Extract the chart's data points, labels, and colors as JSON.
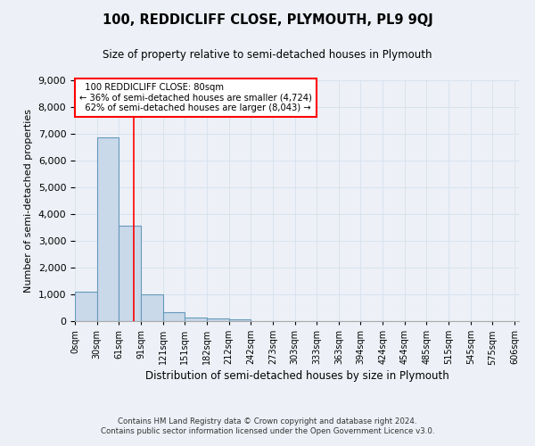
{
  "title": "100, REDDICLIFF CLOSE, PLYMOUTH, PL9 9QJ",
  "subtitle": "Size of property relative to semi-detached houses in Plymouth",
  "xlabel": "Distribution of semi-detached houses by size in Plymouth",
  "ylabel": "Number of semi-detached properties",
  "bar_values": [
    1100,
    6850,
    3560,
    1000,
    320,
    140,
    100,
    70,
    0,
    0,
    0,
    0,
    0,
    0,
    0,
    0,
    0,
    0,
    0,
    0
  ],
  "bin_labels": [
    "0sqm",
    "30sqm",
    "61sqm",
    "91sqm",
    "121sqm",
    "151sqm",
    "182sqm",
    "212sqm",
    "242sqm",
    "273sqm",
    "303sqm",
    "333sqm",
    "363sqm",
    "394sqm",
    "424sqm",
    "454sqm",
    "485sqm",
    "515sqm",
    "545sqm",
    "575sqm",
    "606sqm"
  ],
  "bar_color": "#c9d9ea",
  "bar_edge_color": "#6699bb",
  "grid_color": "#d8e2ee",
  "background_color": "#edf1f7",
  "property_label": "100 REDDICLIFF CLOSE: 80sqm",
  "pct_smaller": 36,
  "n_smaller": 4724,
  "pct_larger": 62,
  "n_larger": 8043,
  "vline_x": 80,
  "ylim": [
    0,
    9000
  ],
  "yticks": [
    0,
    1000,
    2000,
    3000,
    4000,
    5000,
    6000,
    7000,
    8000,
    9000
  ],
  "footer1": "Contains HM Land Registry data © Crown copyright and database right 2024.",
  "footer2": "Contains public sector information licensed under the Open Government Licence v3.0."
}
